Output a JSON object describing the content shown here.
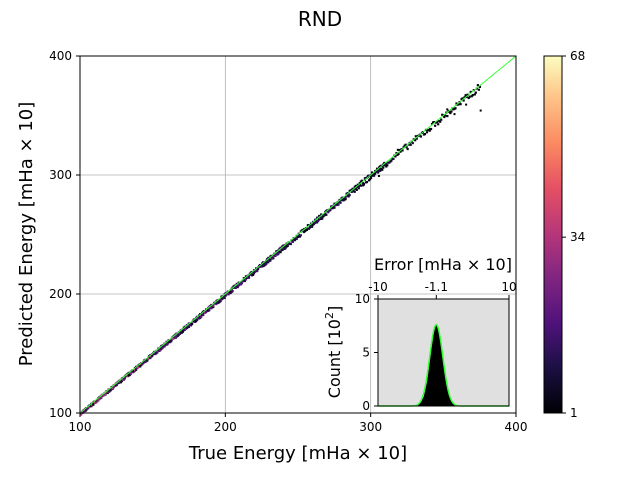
{
  "chart_data": [
    {
      "type": "heatmap",
      "title": "RND",
      "xlabel": "True Energy [mHa × 10]",
      "ylabel": "Predicted Energy [mHa × 10]",
      "xlim": [
        100,
        400
      ],
      "ylim": [
        100,
        400
      ],
      "xticks": [
        100,
        200,
        300,
        400
      ],
      "yticks": [
        100,
        200,
        300,
        400
      ],
      "grid": true,
      "reference_line": {
        "x": [
          100,
          400
        ],
        "y": [
          100,
          400
        ],
        "color": "#33ff33"
      },
      "colormap": "magma",
      "colorbar": {
        "min": 1,
        "max": 68,
        "ticks": [
          1,
          34,
          68
        ]
      },
      "x_extent": [
        100,
        375
      ]
    },
    {
      "type": "area",
      "title": "",
      "xlabel": "Error [mHa × 10]",
      "ylabel": "Count [10^2]",
      "ylabel_main": "Count [10",
      "ylabel_sup": "2",
      "ylabel_tail": "]",
      "xlim": [
        -10,
        10
      ],
      "ylim": [
        0,
        10
      ],
      "xticks": [
        -10,
        -1.1,
        10
      ],
      "xtick_labels": [
        "-10",
        "-1.1",
        "10"
      ],
      "yticks": [
        0,
        5,
        10
      ],
      "background": "#e0e0e0",
      "histogram": {
        "x": [
          -10,
          -4.5,
          -4,
          -3.5,
          -3,
          -2.5,
          -2,
          -1.5,
          -1.1,
          -0.7,
          -0.2,
          0.3,
          0.8,
          1.3,
          1.8,
          2.3,
          10
        ],
        "counts": [
          0,
          0.05,
          0.1,
          0.3,
          0.9,
          2.3,
          4.6,
          6.9,
          7.7,
          6.9,
          4.8,
          2.6,
          1.1,
          0.4,
          0.15,
          0.05,
          0
        ],
        "color": "#000000"
      },
      "fit_curve": {
        "mean": -1.1,
        "sigma": 1.0,
        "peak": 7.6,
        "color": "#33ff33"
      }
    }
  ]
}
